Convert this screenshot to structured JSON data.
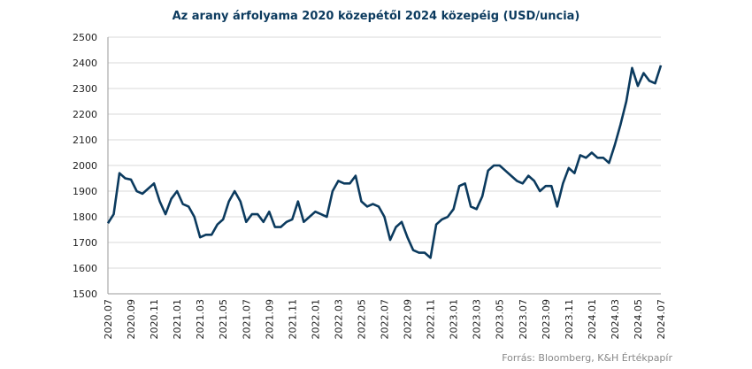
{
  "chart_data": {
    "type": "line",
    "title": "Az arany árfolyama 2020 közepétől 2024 közepéig (USD/uncia)",
    "source": "Forrás: Bloomberg,  K&H Értékpapír",
    "categories": [
      "2020.07",
      null,
      null,
      null,
      "2020.09",
      null,
      null,
      null,
      "2020.11",
      null,
      null,
      null,
      "2021.01",
      null,
      null,
      null,
      "2021.03",
      null,
      null,
      null,
      "2021.05",
      null,
      null,
      null,
      "2021.07",
      null,
      null,
      null,
      "2021.09",
      null,
      null,
      null,
      "2021.11",
      null,
      null,
      null,
      "2022.01",
      null,
      null,
      null,
      "2022.03",
      null,
      null,
      null,
      "2022.05",
      null,
      null,
      null,
      "2022.07",
      null,
      null,
      null,
      "2022.09",
      null,
      null,
      null,
      "2022.11",
      null,
      null,
      null,
      "2023.01",
      null,
      null,
      null,
      "2023.03",
      null,
      null,
      null,
      "2023.05",
      null,
      null,
      null,
      "2023.07",
      null,
      null,
      null,
      "2023.09",
      null,
      null,
      null,
      "2023.11",
      null,
      null,
      null,
      "2024.01",
      null,
      null,
      null,
      "2024.03",
      null,
      null,
      null,
      "2024.05",
      null,
      null,
      null,
      "2024.07"
    ],
    "values": [
      1775,
      1810,
      1970,
      1950,
      1945,
      1900,
      1890,
      1910,
      1930,
      1860,
      1810,
      1870,
      1900,
      1850,
      1840,
      1800,
      1720,
      1730,
      1730,
      1770,
      1790,
      1860,
      1900,
      1860,
      1780,
      1810,
      1810,
      1780,
      1820,
      1760,
      1760,
      1780,
      1790,
      1860,
      1780,
      1800,
      1820,
      1810,
      1800,
      1900,
      1940,
      1930,
      1930,
      1960,
      1860,
      1840,
      1850,
      1840,
      1800,
      1710,
      1760,
      1780,
      1720,
      1670,
      1660,
      1660,
      1640,
      1770,
      1790,
      1800,
      1830,
      1920,
      1930,
      1840,
      1830,
      1880,
      1980,
      2000,
      2000,
      1980,
      1960,
      1940,
      1930,
      1960,
      1940,
      1900,
      1920,
      1920,
      1840,
      1930,
      1990,
      1970,
      2040,
      2030,
      2050,
      2030,
      2030,
      2010,
      2080,
      2160,
      2250,
      2380,
      2310,
      2360,
      2330,
      2320,
      2390
    ],
    "color": "#0b3a5e",
    "ylim": [
      1500,
      2500
    ],
    "yticks": [
      1500,
      1600,
      1700,
      1800,
      1900,
      2000,
      2100,
      2200,
      2300,
      2400,
      2500
    ],
    "grid": true
  }
}
